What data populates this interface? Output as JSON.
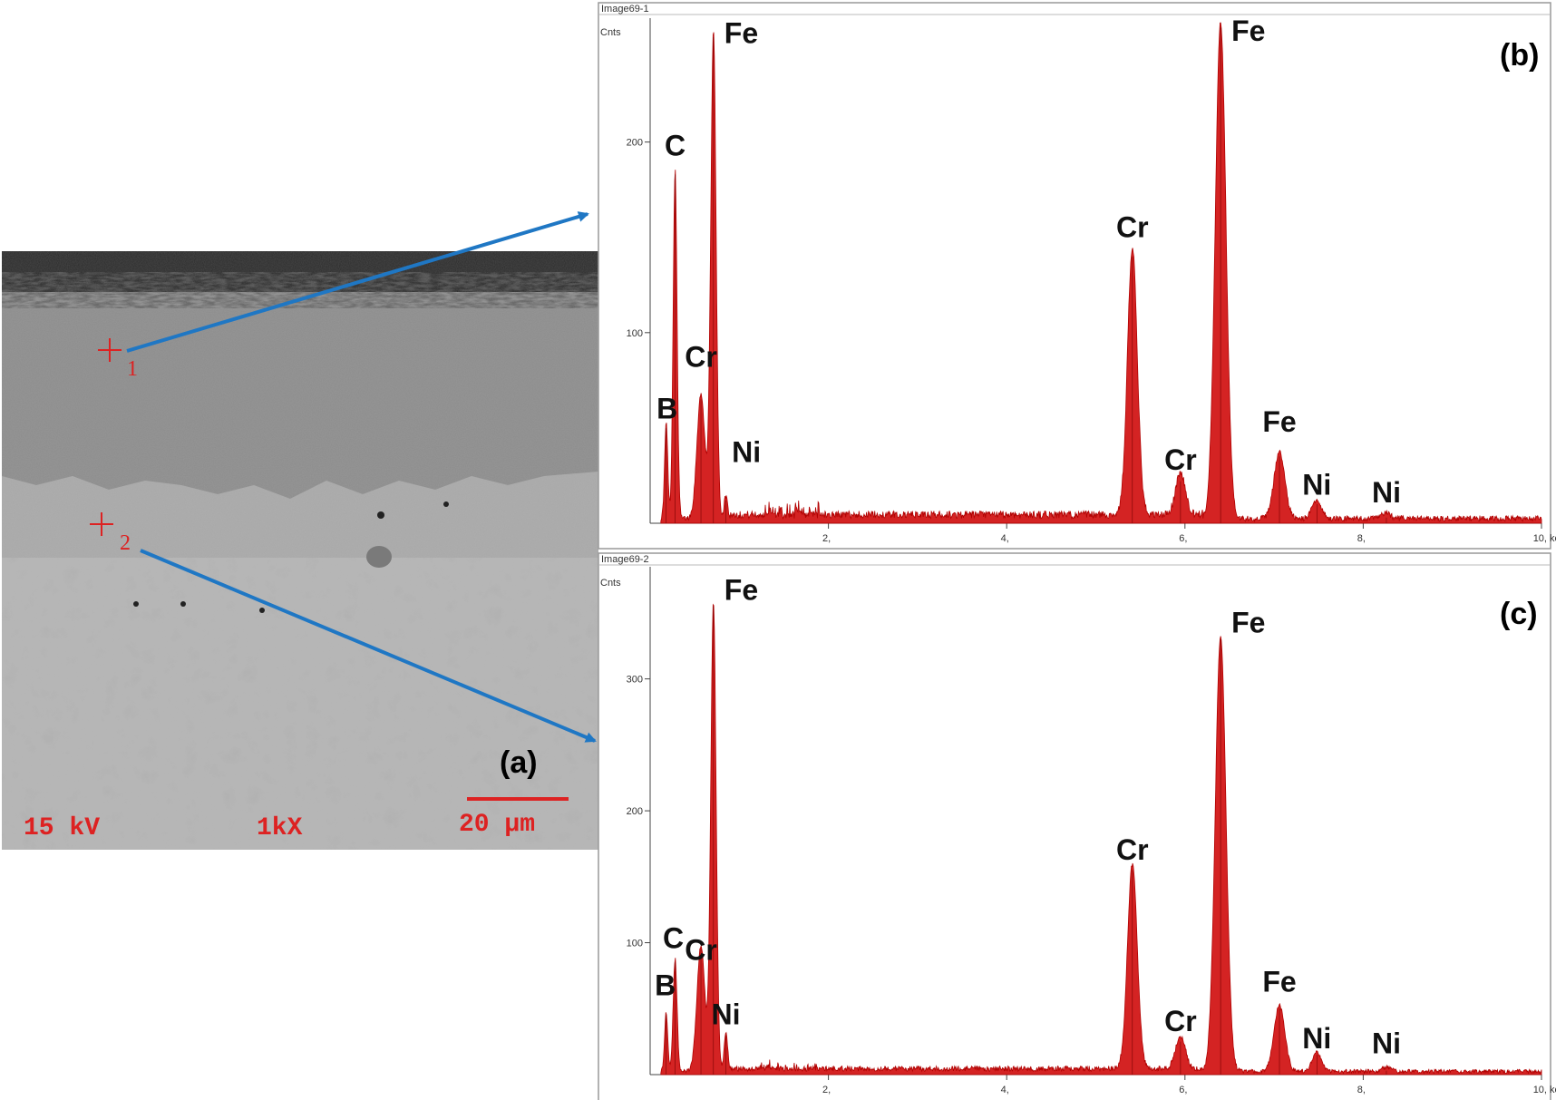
{
  "sem_panel": {
    "panel_label": "(a)",
    "voltage_text": "15 kV",
    "magnification_text": "1kX",
    "scale_bar_text": "20 μm",
    "points": [
      {
        "label": "1"
      },
      {
        "label": "2"
      }
    ],
    "colors": {
      "marker": "#dd2222",
      "arrow": "#1f77c4",
      "scale_bar": "#dd2222"
    }
  },
  "chart_data": [
    {
      "type": "area",
      "window_title": "Image69-1",
      "panel_label": "(b)",
      "ylabel": "Cnts",
      "xlabel": "",
      "xlim": [
        0,
        10.0
      ],
      "ylim": [
        0,
        265
      ],
      "x_ticks": [
        2,
        4,
        6,
        8,
        10
      ],
      "x_tick_labels": [
        "2,",
        "4,",
        "6,",
        "8,",
        "10, keV"
      ],
      "y_ticks": [
        100,
        200
      ],
      "y_tick_labels": [
        "100",
        "200"
      ],
      "series_color": "#d01010",
      "peaks": [
        {
          "element": "B",
          "energy": 0.18,
          "height": 50,
          "width": 0.018
        },
        {
          "element": "C",
          "energy": 0.28,
          "height": 183,
          "width": 0.022
        },
        {
          "element": "Cr",
          "energy": 0.57,
          "height": 65,
          "width": 0.045
        },
        {
          "element": "Fe",
          "energy": 0.71,
          "height": 255,
          "width": 0.03
        },
        {
          "element": "Ni",
          "energy": 0.85,
          "height": 12,
          "width": 0.02
        },
        {
          "element": "Cr",
          "energy": 5.41,
          "height": 140,
          "width": 0.055
        },
        {
          "element": "Cr",
          "energy": 5.95,
          "height": 22,
          "width": 0.055
        },
        {
          "element": "Fe",
          "energy": 6.4,
          "height": 260,
          "width": 0.06
        },
        {
          "element": "Fe",
          "energy": 7.06,
          "height": 35,
          "width": 0.06
        },
        {
          "element": "Ni",
          "energy": 7.48,
          "height": 10,
          "width": 0.05
        },
        {
          "element": "Ni",
          "energy": 8.26,
          "height": 3,
          "width": 0.05
        }
      ],
      "annotations": [
        {
          "text": "Fe",
          "energy": 0.71,
          "level": 252
        },
        {
          "text": "C",
          "energy": 0.28,
          "level": 193
        },
        {
          "text": "Cr",
          "energy": 0.57,
          "level": 82
        },
        {
          "text": "B",
          "energy": 0.19,
          "level": 55
        },
        {
          "text": "Ni",
          "energy": 1.08,
          "level": 32
        },
        {
          "text": "Cr",
          "energy": 5.41,
          "level": 150
        },
        {
          "text": "Fe",
          "energy": 6.4,
          "level": 253
        },
        {
          "text": "Cr",
          "energy": 5.95,
          "level": 28
        },
        {
          "text": "Fe",
          "energy": 7.06,
          "level": 48
        },
        {
          "text": "Ni",
          "energy": 7.48,
          "level": 15
        },
        {
          "text": "Ni",
          "energy": 8.26,
          "level": 11
        }
      ]
    },
    {
      "type": "area",
      "window_title": "Image69-2",
      "panel_label": "(c)",
      "ylabel": "Cnts",
      "xlabel": "",
      "xlim": [
        0,
        10.0
      ],
      "ylim": [
        0,
        385
      ],
      "x_ticks": [
        2,
        4,
        6,
        8,
        10
      ],
      "x_tick_labels": [
        "2,",
        "4,",
        "6,",
        "8,",
        "10, keV"
      ],
      "y_ticks": [
        100,
        200,
        300
      ],
      "y_tick_labels": [
        "100",
        "200",
        "300"
      ],
      "series_color": "#d01010",
      "peaks": [
        {
          "element": "B",
          "energy": 0.18,
          "height": 45,
          "width": 0.018
        },
        {
          "element": "C",
          "energy": 0.28,
          "height": 85,
          "width": 0.022
        },
        {
          "element": "Cr",
          "energy": 0.57,
          "height": 95,
          "width": 0.045
        },
        {
          "element": "Fe",
          "energy": 0.71,
          "height": 355,
          "width": 0.03
        },
        {
          "element": "Ni",
          "energy": 0.85,
          "height": 30,
          "width": 0.02
        },
        {
          "element": "Cr",
          "energy": 5.41,
          "height": 155,
          "width": 0.055
        },
        {
          "element": "Cr",
          "energy": 5.95,
          "height": 25,
          "width": 0.055
        },
        {
          "element": "Fe",
          "energy": 6.4,
          "height": 330,
          "width": 0.06
        },
        {
          "element": "Fe",
          "energy": 7.06,
          "height": 50,
          "width": 0.06
        },
        {
          "element": "Ni",
          "energy": 7.48,
          "height": 15,
          "width": 0.05
        },
        {
          "element": "Ni",
          "energy": 8.26,
          "height": 3,
          "width": 0.05
        }
      ],
      "annotations": [
        {
          "text": "Fe",
          "energy": 0.71,
          "level": 360
        },
        {
          "text": "C",
          "energy": 0.26,
          "level": 96
        },
        {
          "text": "Cr",
          "energy": 0.57,
          "level": 87
        },
        {
          "text": "B",
          "energy": 0.17,
          "level": 60
        },
        {
          "text": "Ni",
          "energy": 0.85,
          "level": 38
        },
        {
          "text": "Cr",
          "energy": 5.41,
          "level": 163
        },
        {
          "text": "Fe",
          "energy": 6.4,
          "level": 335
        },
        {
          "text": "Cr",
          "energy": 5.95,
          "level": 33
        },
        {
          "text": "Fe",
          "energy": 7.06,
          "level": 63
        },
        {
          "text": "Ni",
          "energy": 7.48,
          "level": 20
        },
        {
          "text": "Ni",
          "energy": 8.26,
          "level": 16
        }
      ]
    }
  ]
}
